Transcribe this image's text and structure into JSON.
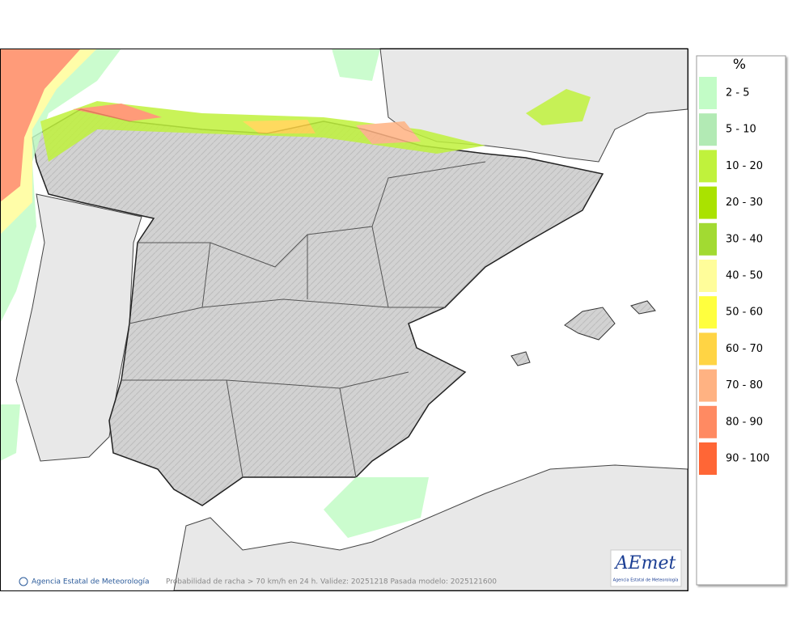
{
  "legend": {
    "title": "%",
    "items": [
      {
        "label": "2 - 5",
        "color": "#c2fcc6"
      },
      {
        "label": "5 - 10",
        "color": "#b2eab4"
      },
      {
        "label": "10 - 20",
        "color": "#c0f23c"
      },
      {
        "label": "20 - 30",
        "color": "#aae200"
      },
      {
        "label": "30 - 40",
        "color": "#a2da32"
      },
      {
        "label": "40 - 50",
        "color": "#fffd9a"
      },
      {
        "label": "50 - 60",
        "color": "#ffff3e"
      },
      {
        "label": "60 - 70",
        "color": "#ffd444"
      },
      {
        "label": "70 - 80",
        "color": "#ffb282"
      },
      {
        "label": "80 - 90",
        "color": "#ff8a62"
      },
      {
        "label": "90 - 100",
        "color": "#ff6636"
      }
    ]
  },
  "footer": {
    "credit": "Agencia Estatal de Meteorología",
    "caption": "Probabilidad de racha > 70 km/h en 24 h. Validez: 20251218 Pasada modelo: 2025121600"
  },
  "logo": {
    "name": "AEmet",
    "subtitle": "Agencia Estatal de Meteorología"
  }
}
